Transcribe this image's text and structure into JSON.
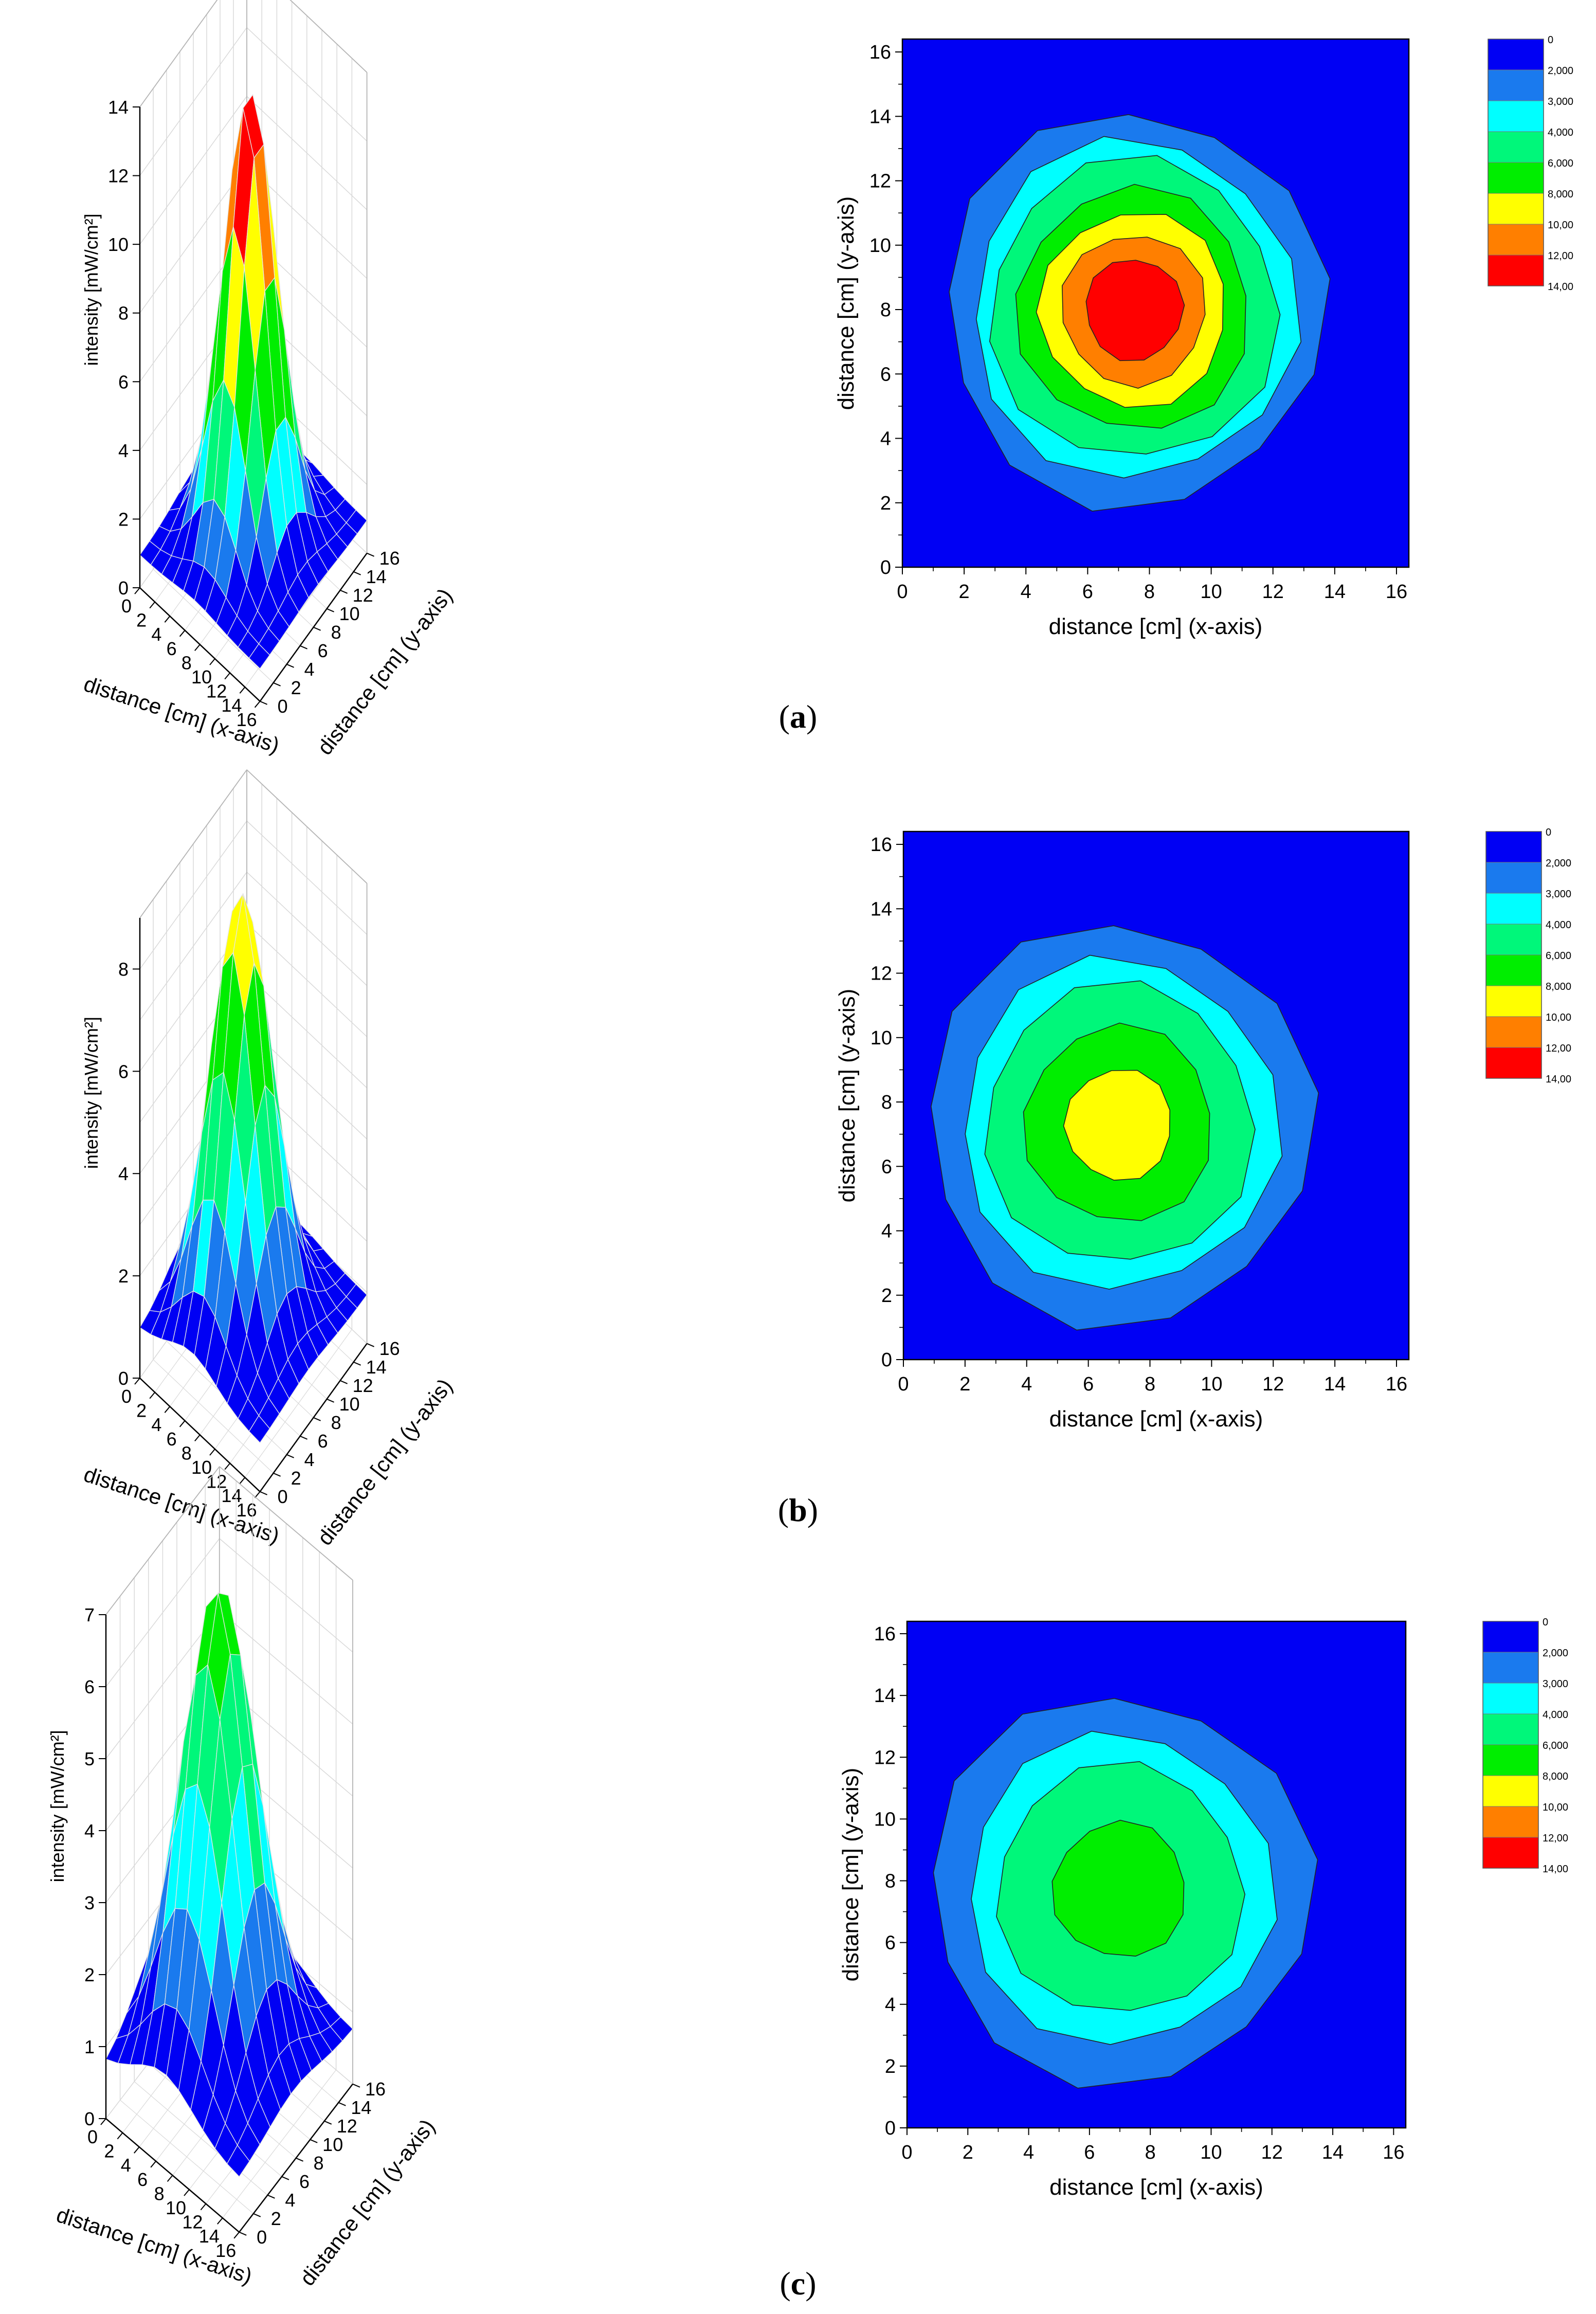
{
  "figure": {
    "panels": [
      {
        "id": "a",
        "label_pre": "(",
        "label_letter": "a",
        "label_post": ")",
        "peak": 14.0,
        "sigma": 2.75,
        "floor": 0.95
      },
      {
        "id": "b",
        "label_pre": "(",
        "label_letter": "b",
        "label_post": ")",
        "peak": 9.2,
        "sigma": 3.1,
        "floor": 0.95
      },
      {
        "id": "c",
        "label_pre": "(",
        "label_letter": "c",
        "label_post": ")",
        "peak": 7.15,
        "sigma": 3.5,
        "floor": 0.75
      }
    ]
  },
  "chart_data": [
    {
      "type": "surface3d",
      "panel": "a",
      "xlabel": "distance [cm] (x-axis)",
      "ylabel": "distance [cm] (y-axis)",
      "zlabel": "intensity [mW/cm²]",
      "x_ticks": [
        0,
        2,
        4,
        6,
        8,
        10,
        12,
        14,
        16
      ],
      "y_ticks": [
        0,
        2,
        4,
        6,
        8,
        10,
        12,
        14,
        16
      ],
      "z_ticks": [
        0,
        2,
        4,
        6,
        8,
        10,
        12,
        14
      ],
      "xlim": [
        0,
        16
      ],
      "ylim": [
        0,
        16
      ],
      "zlim": [
        0,
        14
      ],
      "grid_x": [
        0,
        1.5,
        3,
        4.5,
        6,
        7.5,
        9,
        10.5,
        12,
        13.5,
        15,
        16.5
      ],
      "center": [
        7.5,
        8.0
      ],
      "peak_intensity": 14.0
    },
    {
      "type": "contour",
      "panel": "a",
      "xlabel": "distance [cm] (x-axis)",
      "ylabel": "distance [cm] (y-axis)",
      "x_ticks": [
        0,
        2,
        4,
        6,
        8,
        10,
        12,
        14,
        16
      ],
      "y_ticks": [
        0,
        2,
        4,
        6,
        8,
        10,
        12,
        14,
        16
      ],
      "xlim": [
        0,
        16.4
      ],
      "ylim": [
        0,
        16.4
      ],
      "legend": [
        "0",
        "2,000",
        "3,000",
        "4,000",
        "6,000",
        "8,000",
        "10,00",
        "12,00",
        "14,00"
      ],
      "levels": [
        0,
        2,
        3,
        4,
        6,
        8,
        10,
        12,
        14
      ],
      "center": [
        7.5,
        8.0
      ],
      "peak_intensity": 14.0
    },
    {
      "type": "surface3d",
      "panel": "b",
      "xlabel": "distance [cm] (x-axis)",
      "ylabel": "distance [cm] (y-axis)",
      "zlabel": "intensity [mW/cm²]",
      "x_ticks": [
        0,
        2,
        4,
        6,
        8,
        10,
        12,
        14,
        16
      ],
      "y_ticks": [
        0,
        2,
        4,
        6,
        8,
        10,
        12,
        14,
        16
      ],
      "z_ticks": [
        0,
        2,
        4,
        6,
        8
      ],
      "xlim": [
        0,
        16
      ],
      "ylim": [
        0,
        16
      ],
      "zlim": [
        0,
        9
      ],
      "center": [
        7.0,
        7.3
      ],
      "peak_intensity": 9.2
    },
    {
      "type": "contour",
      "panel": "b",
      "xlabel": "distance [cm] (x-axis)",
      "ylabel": "distance [cm] (y-axis)",
      "x_ticks": [
        0,
        2,
        4,
        6,
        8,
        10,
        12,
        14,
        16
      ],
      "y_ticks": [
        0,
        2,
        4,
        6,
        8,
        10,
        12,
        14,
        16
      ],
      "xlim": [
        0,
        16.4
      ],
      "ylim": [
        0,
        16.4
      ],
      "legend": [
        "0",
        "2,000",
        "3,000",
        "4,000",
        "6,000",
        "8,000",
        "10,00",
        "12,00",
        "14,00"
      ],
      "levels": [
        0,
        2,
        3,
        4,
        6,
        8,
        10,
        12,
        14
      ],
      "center": [
        7.0,
        7.3
      ],
      "peak_intensity": 9.2
    },
    {
      "type": "surface3d",
      "panel": "c",
      "xlabel": "distance [cm] (x-axis)",
      "ylabel": "distance [cm] (y-axis)",
      "zlabel": "intensity [mW/cm²]",
      "x_ticks": [
        0,
        2,
        4,
        6,
        8,
        10,
        12,
        14,
        16
      ],
      "y_ticks": [
        0,
        2,
        4,
        6,
        8,
        10,
        12,
        14,
        16
      ],
      "z_ticks": [
        0,
        1,
        2,
        3,
        4,
        5,
        6,
        7
      ],
      "xlim": [
        0,
        16
      ],
      "ylim": [
        0,
        16
      ],
      "zlim": [
        0,
        7
      ],
      "center": [
        7.0,
        7.7
      ],
      "peak_intensity": 7.15
    },
    {
      "type": "contour",
      "panel": "c",
      "xlabel": "distance [cm] (x-axis)",
      "ylabel": "distance [cm] (y-axis)",
      "x_ticks": [
        0,
        2,
        4,
        6,
        8,
        10,
        12,
        14,
        16
      ],
      "y_ticks": [
        0,
        2,
        4,
        6,
        8,
        10,
        12,
        14,
        16
      ],
      "xlim": [
        0,
        16.4
      ],
      "ylim": [
        0,
        16.4
      ],
      "legend": [
        "0",
        "2,000",
        "3,000",
        "4,000",
        "6,000",
        "8,000",
        "10,00",
        "12,00",
        "14,00"
      ],
      "levels": [
        0,
        2,
        3,
        4,
        6,
        8,
        10,
        12,
        14
      ],
      "center": [
        7.0,
        7.7
      ],
      "peak_intensity": 7.15
    }
  ],
  "palette": [
    "#0000f4",
    "#1a7aee",
    "#00ffff",
    "#00f77a",
    "#00ee00",
    "#ffff00",
    "#ff7f00",
    "#ff0000"
  ]
}
